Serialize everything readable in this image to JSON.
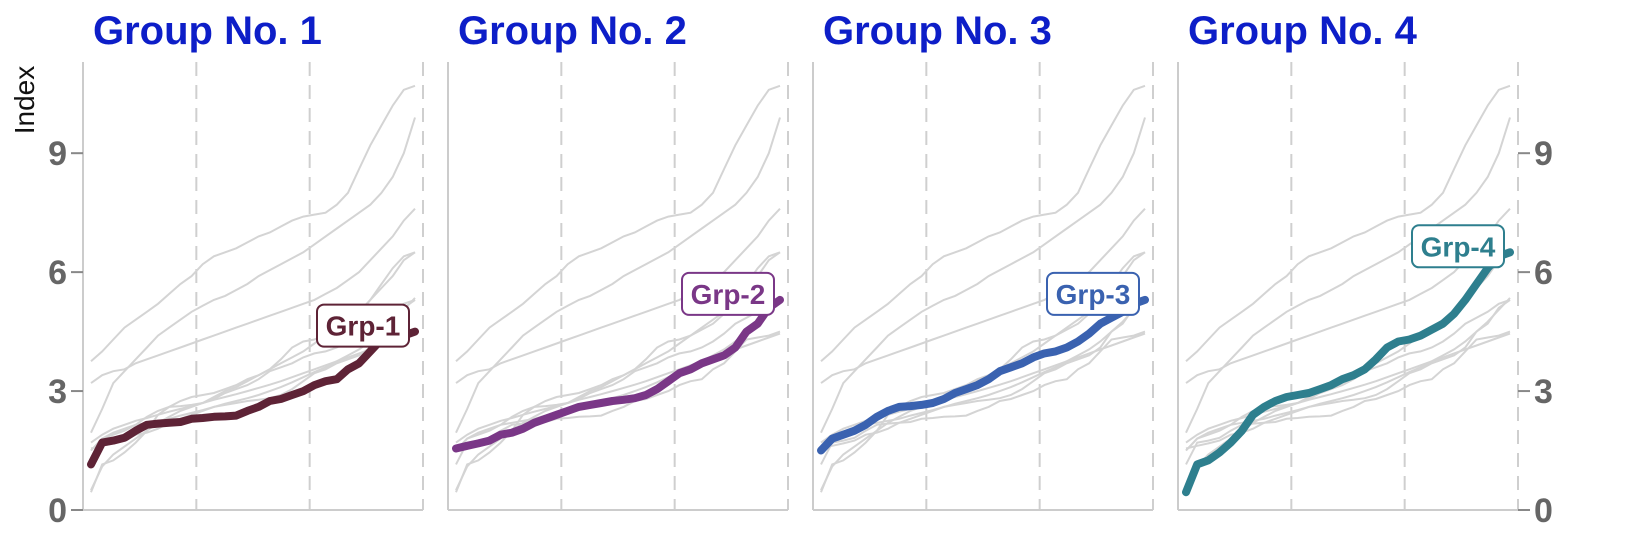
{
  "chart_data": {
    "type": "line",
    "ylabel": "Index",
    "ylim": [
      0,
      11.3
    ],
    "yticks": [
      0,
      3,
      6,
      9
    ],
    "xticks_shown": false,
    "grid": "dashed vertical",
    "x": [
      1,
      2,
      3,
      4,
      5,
      6,
      7,
      8,
      9,
      10,
      11,
      12,
      13,
      14,
      15,
      16,
      17,
      18,
      19,
      20,
      21,
      22,
      23,
      24,
      25,
      26,
      27,
      28,
      29,
      30
    ],
    "series": [
      {
        "name": "Grp-1",
        "color": "#5e2336",
        "values": [
          1.15,
          1.7,
          1.75,
          1.82,
          2.0,
          2.15,
          2.18,
          2.2,
          2.22,
          2.3,
          2.32,
          2.35,
          2.36,
          2.38,
          2.5,
          2.6,
          2.75,
          2.8,
          2.9,
          3.0,
          3.15,
          3.25,
          3.3,
          3.55,
          3.7,
          4.0,
          4.3,
          4.35,
          4.4,
          4.5
        ]
      },
      {
        "name": "Grp-2",
        "color": "#7a3787",
        "values": [
          1.55,
          1.62,
          1.68,
          1.75,
          1.9,
          1.95,
          2.05,
          2.2,
          2.3,
          2.4,
          2.5,
          2.6,
          2.65,
          2.7,
          2.75,
          2.78,
          2.82,
          2.9,
          3.05,
          3.25,
          3.45,
          3.55,
          3.7,
          3.8,
          3.9,
          4.1,
          4.5,
          4.7,
          5.1,
          5.3
        ]
      },
      {
        "name": "Grp-3",
        "color": "#3a62b0",
        "values": [
          1.5,
          1.8,
          1.9,
          2.0,
          2.15,
          2.35,
          2.5,
          2.6,
          2.62,
          2.65,
          2.7,
          2.8,
          2.95,
          3.05,
          3.15,
          3.3,
          3.5,
          3.6,
          3.7,
          3.85,
          3.95,
          4.0,
          4.1,
          4.25,
          4.45,
          4.7,
          4.85,
          5.0,
          5.2,
          5.3
        ]
      },
      {
        "name": "Grp-4",
        "color": "#2e7f8e",
        "values": [
          0.45,
          1.15,
          1.25,
          1.45,
          1.7,
          2.0,
          2.4,
          2.6,
          2.75,
          2.85,
          2.9,
          2.95,
          3.05,
          3.15,
          3.3,
          3.4,
          3.55,
          3.8,
          4.1,
          4.25,
          4.3,
          4.4,
          4.55,
          4.7,
          4.95,
          5.3,
          5.7,
          6.1,
          6.4,
          6.5
        ]
      },
      {
        "name": "",
        "color": "#cccccc",
        "values": [
          3.75,
          4.0,
          4.3,
          4.6,
          4.8,
          5.0,
          5.2,
          5.45,
          5.7,
          5.9,
          6.2,
          6.4,
          6.5,
          6.6,
          6.75,
          6.9,
          7.0,
          7.15,
          7.3,
          7.4,
          7.45,
          7.5,
          7.7,
          8.0,
          8.6,
          9.2,
          9.7,
          10.2,
          10.6,
          10.7
        ]
      },
      {
        "name": "",
        "color": "#cccccc",
        "values": [
          1.95,
          2.55,
          3.2,
          3.5,
          3.8,
          4.1,
          4.4,
          4.6,
          4.8,
          5.0,
          5.15,
          5.3,
          5.4,
          5.55,
          5.7,
          5.9,
          6.05,
          6.2,
          6.35,
          6.5,
          6.7,
          6.9,
          7.1,
          7.3,
          7.5,
          7.7,
          8.0,
          8.4,
          9.0,
          9.9
        ]
      },
      {
        "name": "",
        "color": "#cccccc",
        "values": [
          3.2,
          3.4,
          3.5,
          3.55,
          3.7,
          3.8,
          3.9,
          4.0,
          4.1,
          4.2,
          4.3,
          4.4,
          4.5,
          4.6,
          4.7,
          4.8,
          4.9,
          5.0,
          5.1,
          5.2,
          5.3,
          5.45,
          5.6,
          5.8,
          6.0,
          6.3,
          6.6,
          6.9,
          7.3,
          7.6
        ]
      },
      {
        "name": "",
        "color": "#cccccc",
        "values": [
          0.5,
          1.1,
          1.4,
          1.6,
          1.8,
          2.0,
          2.2,
          2.35,
          2.5,
          2.6,
          2.7,
          2.85,
          3.0,
          3.1,
          3.25,
          3.4,
          3.55,
          3.7,
          3.85,
          4.0,
          4.2,
          4.4,
          4.6,
          4.8,
          5.0,
          5.3,
          5.6,
          5.9,
          6.3,
          6.5
        ]
      },
      {
        "name": "",
        "color": "#cccccc",
        "values": [
          1.5,
          1.8,
          1.95,
          2.05,
          2.15,
          2.2,
          2.25,
          2.3,
          2.38,
          2.45,
          2.52,
          2.6,
          2.68,
          2.75,
          2.82,
          2.9,
          3.0,
          3.1,
          3.22,
          3.35,
          3.48,
          3.6,
          3.75,
          3.9,
          4.05,
          4.25,
          4.5,
          4.75,
          5.05,
          5.35
        ]
      },
      {
        "name": "",
        "color": "#cccccc",
        "values": [
          1.7,
          1.9,
          2.05,
          2.15,
          2.25,
          2.32,
          2.4,
          2.48,
          2.55,
          2.62,
          2.7,
          2.78,
          2.85,
          2.92,
          3.0,
          3.08,
          3.16,
          3.25,
          3.35,
          3.45,
          3.55,
          3.65,
          3.75,
          3.85,
          3.95,
          4.05,
          4.15,
          4.25,
          4.35,
          4.45
        ]
      }
    ],
    "panels": [
      {
        "title": "Group No. 1",
        "highlight": 0,
        "label": "Grp-1"
      },
      {
        "title": "Group No. 2",
        "highlight": 1,
        "label": "Grp-2"
      },
      {
        "title": "Group No. 3",
        "highlight": 2,
        "label": "Grp-3"
      },
      {
        "title": "Group No. 4",
        "highlight": 3,
        "label": "Grp-4"
      }
    ]
  }
}
